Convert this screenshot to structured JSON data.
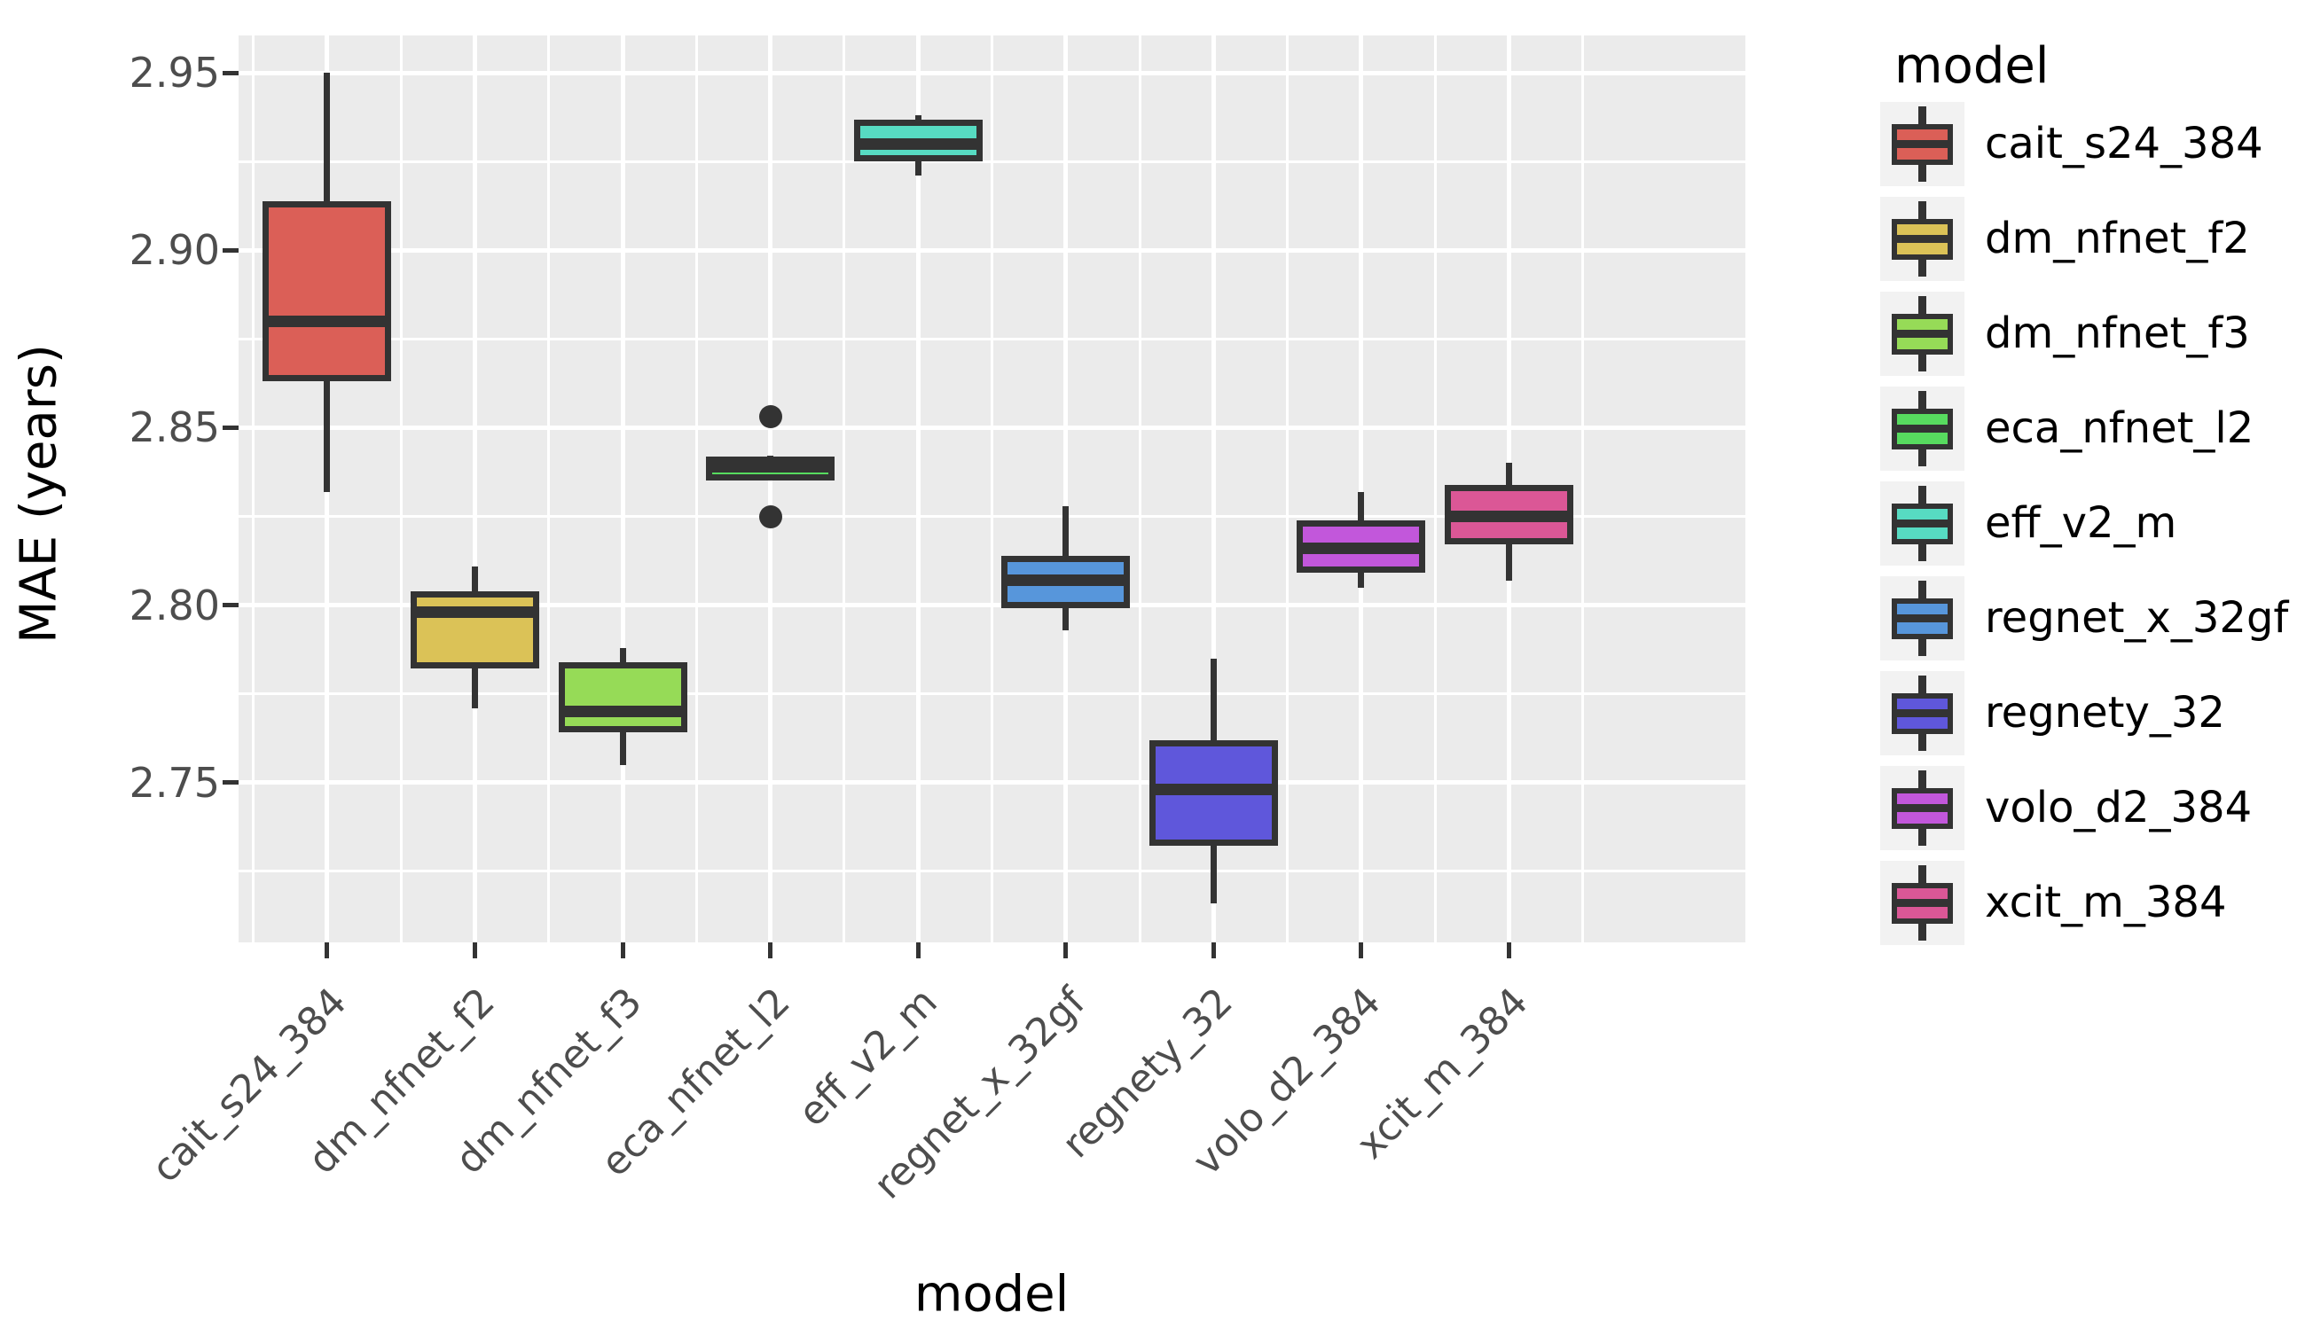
{
  "figure": {
    "background": "#ffffff",
    "panel_background": "#ebebeb",
    "grid_color": "#ffffff",
    "box_outline_color": "#333333",
    "tick_label_color": "#4d4d4d",
    "axis_title_color": "#000000",
    "legend_key_background": "#f2f2f2"
  },
  "chart_data": {
    "type": "boxplot",
    "title": "",
    "xlabel": "model",
    "ylabel": "MAE (years)",
    "legend_title": "model",
    "legend_position": "right",
    "grid": true,
    "ylim": [
      2.705,
      2.9605
    ],
    "yticks": [
      2.75,
      2.8,
      2.85,
      2.9,
      2.95
    ],
    "ytick_labels": [
      "2.75",
      "2.80",
      "2.85",
      "2.90",
      "2.95"
    ],
    "yticks_minor": [
      2.725,
      2.775,
      2.825,
      2.875,
      2.925
    ],
    "categories": [
      "cait_s24_384",
      "dm_nfnet_f2",
      "dm_nfnet_f3",
      "eca_nfnet_l2",
      "eff_v2_m",
      "regnet_x_32gf",
      "regnety_32",
      "volo_d2_384",
      "xcit_m_384"
    ],
    "series": [
      {
        "name": "cait_s24_384",
        "color": "#db5f57",
        "min": 2.832,
        "q1": 2.864,
        "median": 2.88,
        "q3": 2.913,
        "max": 2.95,
        "outliers": []
      },
      {
        "name": "dm_nfnet_f2",
        "color": "#dbc257",
        "min": 2.771,
        "q1": 2.783,
        "median": 2.798,
        "q3": 2.803,
        "max": 2.811,
        "outliers": []
      },
      {
        "name": "dm_nfnet_f3",
        "color": "#96db57",
        "min": 2.755,
        "q1": 2.765,
        "median": 2.77,
        "q3": 2.783,
        "max": 2.788,
        "outliers": []
      },
      {
        "name": "eca_nfnet_l2",
        "color": "#57db5f",
        "min": 2.835,
        "q1": 2.836,
        "median": 2.839,
        "q3": 2.841,
        "max": 2.842,
        "outliers": [
          2.853,
          2.825
        ]
      },
      {
        "name": "eff_v2_m",
        "color": "#57dbc2",
        "min": 2.921,
        "q1": 2.926,
        "median": 2.93,
        "q3": 2.936,
        "max": 2.938,
        "outliers": []
      },
      {
        "name": "regnet_x_32gf",
        "color": "#5796db",
        "min": 2.793,
        "q1": 2.8,
        "median": 2.807,
        "q3": 2.813,
        "max": 2.828,
        "outliers": []
      },
      {
        "name": "regnety_32",
        "color": "#5f57db",
        "min": 2.716,
        "q1": 2.733,
        "median": 2.748,
        "q3": 2.761,
        "max": 2.785,
        "outliers": []
      },
      {
        "name": "volo_d2_384",
        "color": "#c257db",
        "min": 2.805,
        "q1": 2.81,
        "median": 2.816,
        "q3": 2.823,
        "max": 2.832,
        "outliers": []
      },
      {
        "name": "xcit_m_384",
        "color": "#db5796",
        "min": 2.807,
        "q1": 2.818,
        "median": 2.825,
        "q3": 2.833,
        "max": 2.84,
        "outliers": []
      }
    ]
  }
}
